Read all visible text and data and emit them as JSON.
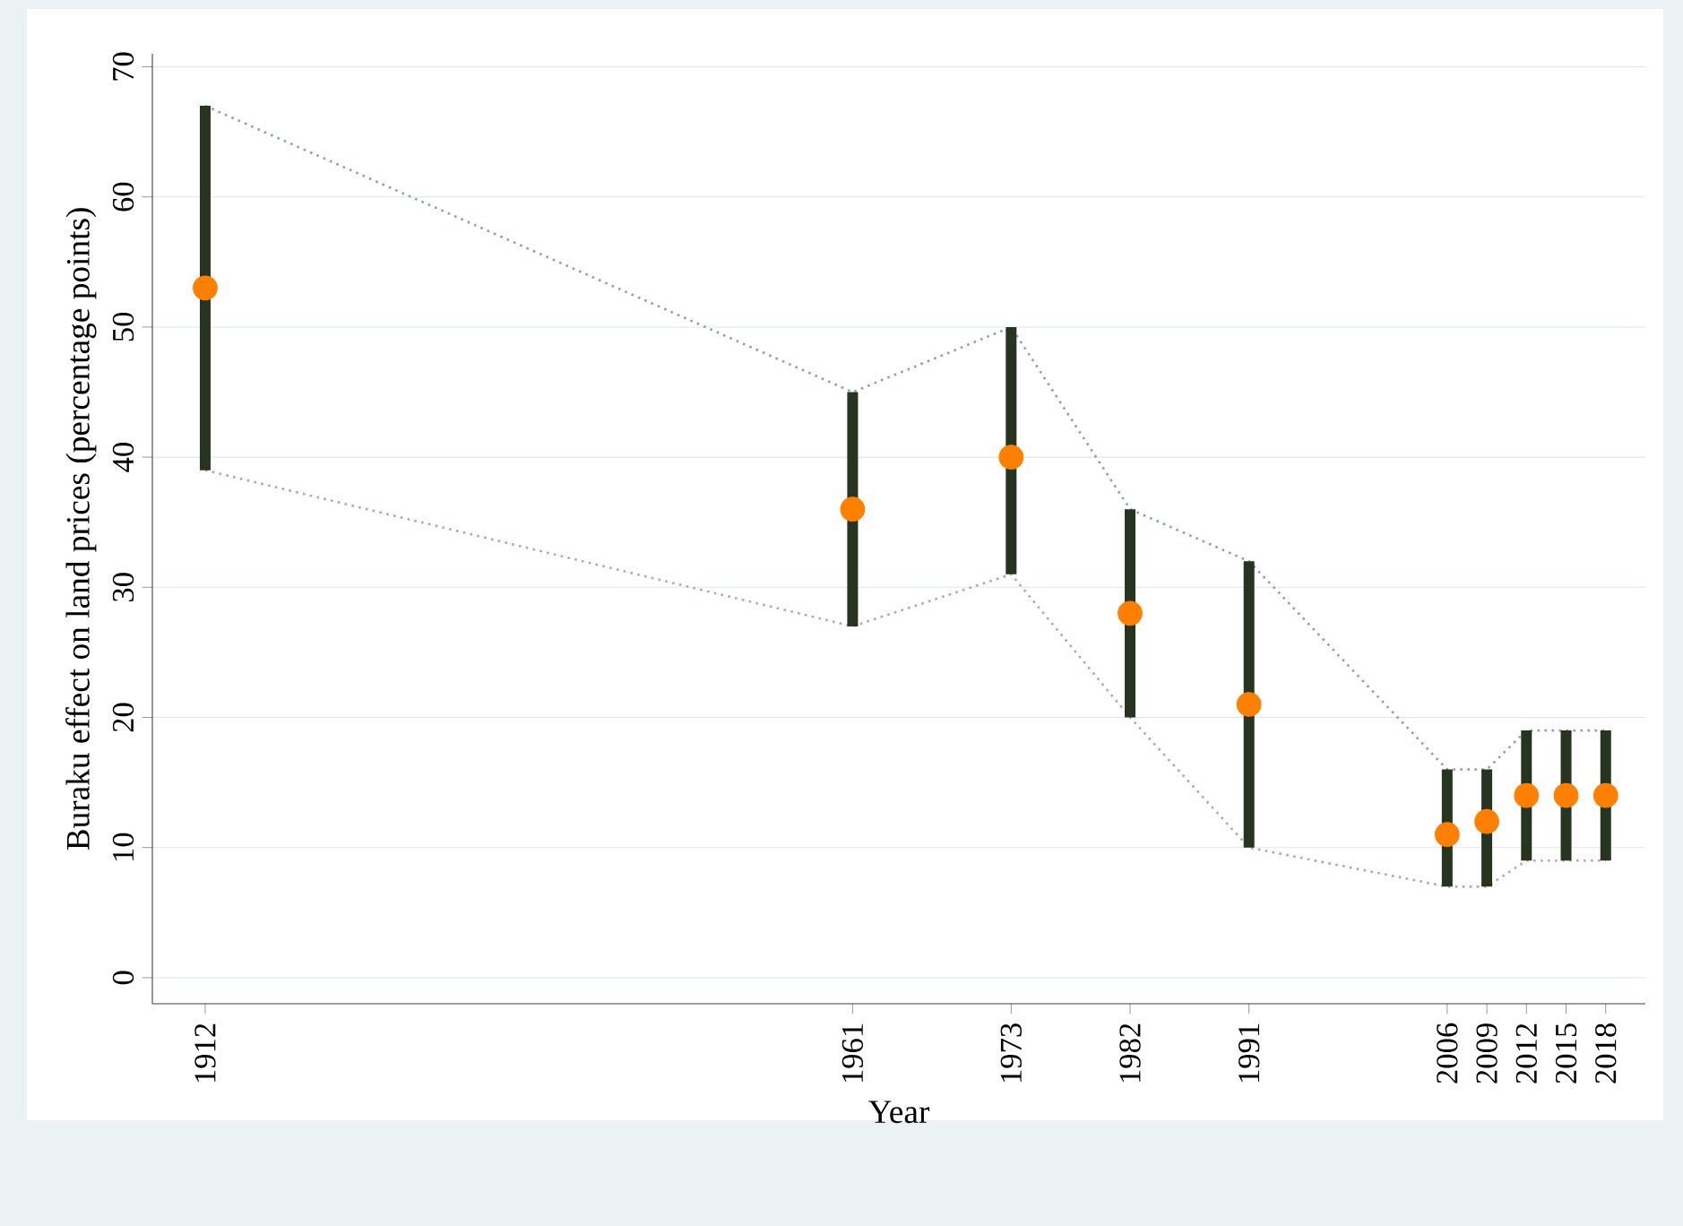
{
  "chart_data": {
    "type": "scatter",
    "xlabel": "Year",
    "ylabel": "Buraku effect on land prices (percentage points)",
    "x": [
      1912,
      1961,
      1973,
      1982,
      1991,
      2006,
      2009,
      2012,
      2015,
      2018
    ],
    "xlim": [
      1908,
      2021
    ],
    "ylim": [
      -2,
      71
    ],
    "xticks": [
      1912,
      1961,
      1973,
      1982,
      1991,
      2006,
      2009,
      2012,
      2015,
      2018
    ],
    "yticks": [
      0,
      10,
      20,
      30,
      40,
      50,
      60,
      70
    ],
    "grid": "y",
    "series": [
      {
        "color": "#ff8000",
        "marker": "circle",
        "values": [
          53,
          36,
          40,
          28,
          21,
          11,
          12,
          14,
          14,
          14
        ],
        "errors": [
          [
            39,
            67
          ],
          [
            27,
            45
          ],
          [
            31,
            50
          ],
          [
            20,
            36
          ],
          [
            10,
            32
          ],
          [
            7,
            16
          ],
          [
            7,
            16
          ],
          [
            9,
            19
          ],
          [
            9,
            19
          ],
          [
            9,
            19
          ]
        ]
      },
      {
        "type": "line",
        "color": "#8fa3b5",
        "marker": "none",
        "line_style": "dotted",
        "values": [
          67,
          45,
          50,
          36,
          32,
          16,
          16,
          19,
          19,
          19
        ]
      },
      {
        "type": "line",
        "color": "#c9a0aa",
        "marker": "none",
        "line_style": "dotted",
        "values": [
          39,
          27,
          31,
          20,
          10,
          7,
          7,
          9,
          9,
          9
        ]
      }
    ]
  }
}
